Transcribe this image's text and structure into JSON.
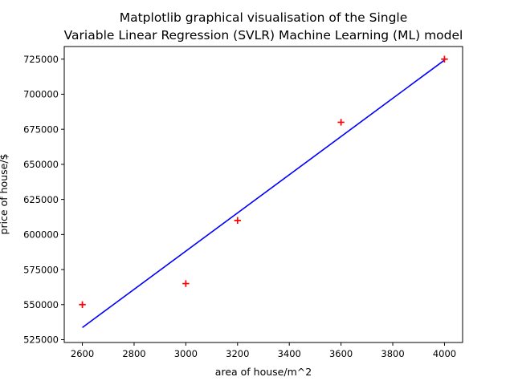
{
  "chart_data": {
    "type": "scatter",
    "title_lines": [
      "Matplotlib graphical visualisation of the Single",
      "Variable Linear Regression (SVLR) Machine Learning (ML) model"
    ],
    "xlabel": "area of house/m^2",
    "ylabel": "price of house/$",
    "xlim": [
      2530,
      4070
    ],
    "ylim": [
      523000,
      734000
    ],
    "xticks": [
      2600,
      2800,
      3000,
      3200,
      3400,
      3600,
      3800,
      4000
    ],
    "yticks": [
      525000,
      550000,
      575000,
      600000,
      625000,
      650000,
      675000,
      700000,
      725000
    ],
    "grid": false,
    "series": [
      {
        "kind": "scatter",
        "marker": "+",
        "color": "#ff0000",
        "points": [
          {
            "x": 2600,
            "y": 550000
          },
          {
            "x": 3000,
            "y": 565000
          },
          {
            "x": 3200,
            "y": 610000
          },
          {
            "x": 3600,
            "y": 680000
          },
          {
            "x": 4000,
            "y": 725000
          }
        ]
      },
      {
        "kind": "line",
        "color": "#0000ff",
        "points": [
          {
            "x": 2600,
            "y": 533664
          },
          {
            "x": 4000,
            "y": 724315
          }
        ]
      }
    ]
  }
}
